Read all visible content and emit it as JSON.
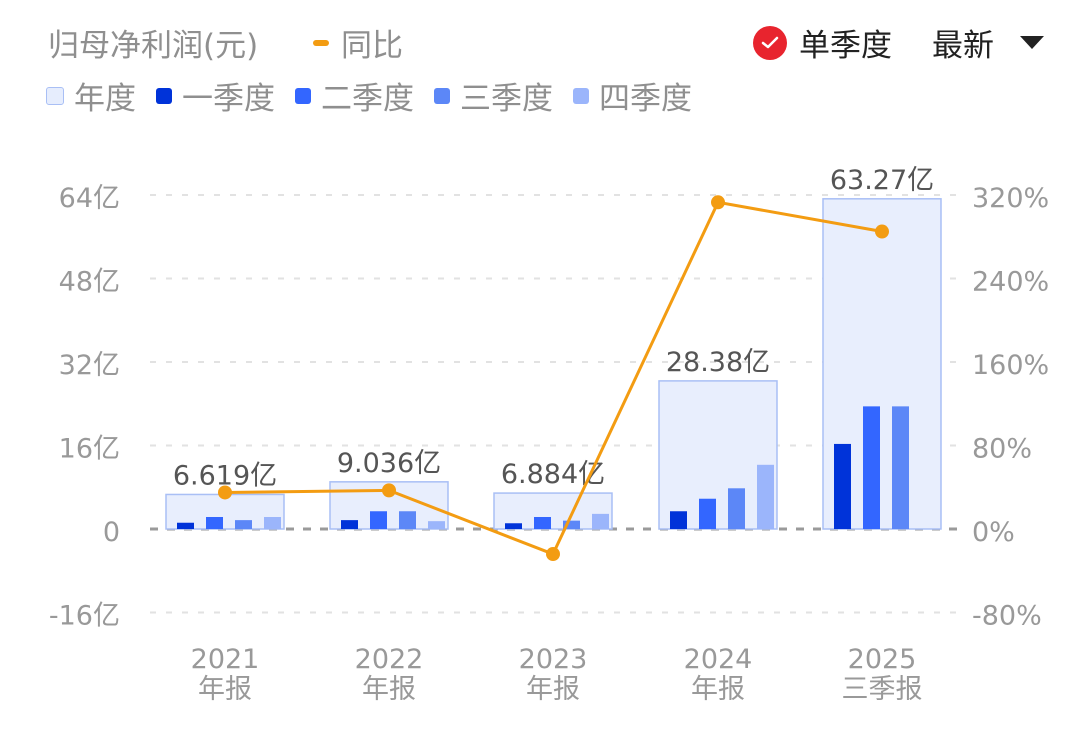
{
  "header": {
    "title": "归母净利润(元)",
    "yoy_label": "同比",
    "toggle_label": "单季度",
    "toggle_checked": true,
    "sort_label": "最新"
  },
  "legend": [
    {
      "label": "年度",
      "color": "#e6edfd"
    },
    {
      "label": "一季度",
      "color": "#0033d9"
    },
    {
      "label": "二季度",
      "color": "#3366ff"
    },
    {
      "label": "三季度",
      "color": "#5c87f7"
    },
    {
      "label": "四季度",
      "color": "#9bb5fb"
    }
  ],
  "colors": {
    "yoy": "#f39c12",
    "annual_fill": "#e8eefd",
    "annual_stroke": "#a9bff5",
    "axis_text": "#999999",
    "label_text": "#555555"
  },
  "chart_data": {
    "type": "bar",
    "title": "归母净利润(元)",
    "categories": [
      "2021\n年报",
      "2022\n年报",
      "2023\n年报",
      "2024\n年报",
      "2025\n三季报"
    ],
    "category_lines": [
      [
        "2021",
        "年报"
      ],
      [
        "2022",
        "年报"
      ],
      [
        "2023",
        "年报"
      ],
      [
        "2024",
        "年报"
      ],
      [
        "2025",
        "三季报"
      ]
    ],
    "annual_labels": [
      "6.619亿",
      "9.036亿",
      "6.884亿",
      "28.38亿",
      "63.27亿"
    ],
    "series": [
      {
        "name": "年度",
        "type": "bar",
        "unit": "亿",
        "values": [
          6.619,
          9.036,
          6.884,
          28.38,
          63.27
        ]
      },
      {
        "name": "一季度",
        "type": "bar",
        "unit": "亿",
        "values": [
          1.2,
          1.7,
          1.1,
          3.4,
          16.3
        ]
      },
      {
        "name": "二季度",
        "type": "bar",
        "unit": "亿",
        "values": [
          2.3,
          3.4,
          2.3,
          5.8,
          23.5
        ]
      },
      {
        "name": "三季度",
        "type": "bar",
        "unit": "亿",
        "values": [
          1.7,
          3.4,
          1.6,
          7.8,
          23.5
        ]
      },
      {
        "name": "四季度",
        "type": "bar",
        "unit": "亿",
        "values": [
          2.3,
          1.5,
          2.9,
          12.3,
          null
        ]
      },
      {
        "name": "同比",
        "type": "line",
        "unit": "%",
        "axis": "right",
        "values": [
          35,
          37,
          -24,
          313,
          285
        ]
      }
    ],
    "left_axis": {
      "ticks": [
        "64亿",
        "48亿",
        "32亿",
        "16亿",
        "0",
        "-16亿"
      ],
      "range": [
        -16,
        64
      ]
    },
    "right_axis": {
      "ticks": [
        "320%",
        "240%",
        "160%",
        "80%",
        "0%",
        "-80%"
      ],
      "range": [
        -80,
        320
      ]
    },
    "grid": true,
    "legend_position": "top"
  }
}
